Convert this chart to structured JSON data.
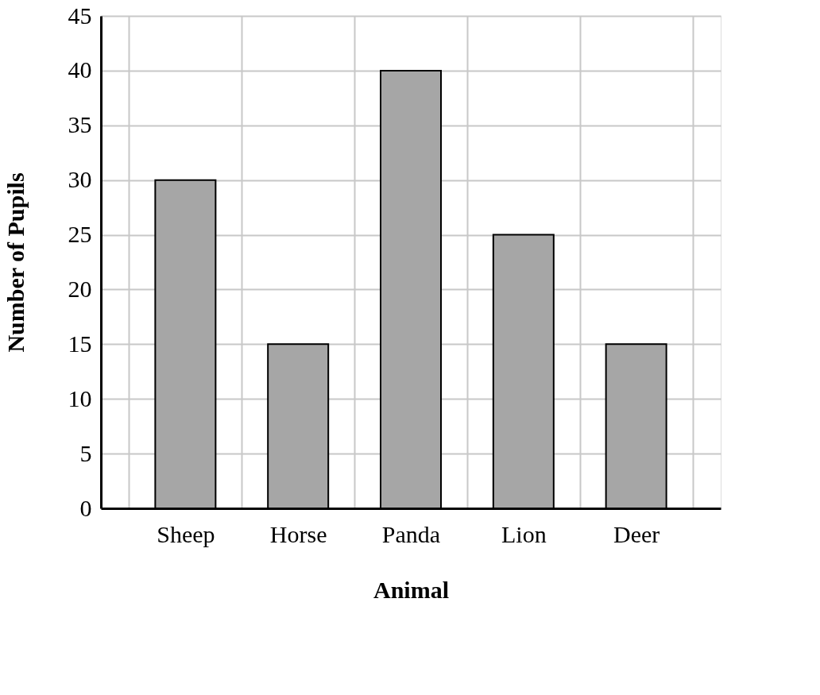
{
  "chart_data": {
    "type": "bar",
    "xlabel": "Animal",
    "ylabel": "Number of Pupils",
    "categories": [
      "Sheep",
      "Horse",
      "Panda",
      "Lion",
      "Deer"
    ],
    "values": [
      30,
      15,
      40,
      25,
      15
    ],
    "color": "#a6a6a6",
    "ylim": [
      0,
      45
    ],
    "yticks": [
      0,
      5,
      10,
      15,
      20,
      25,
      30,
      35,
      40,
      45
    ],
    "grid": true
  }
}
